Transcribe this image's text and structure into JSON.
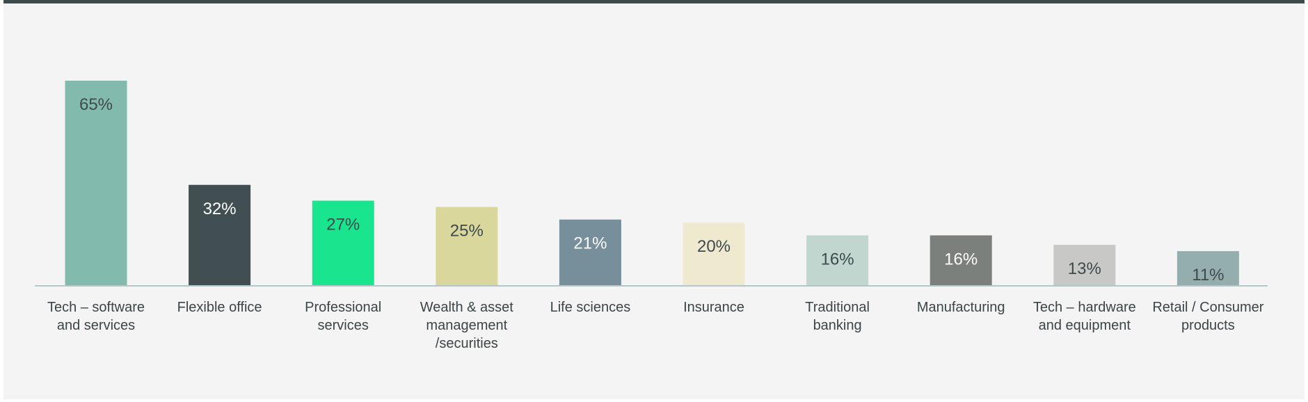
{
  "chart_data": {
    "type": "bar",
    "categories": [
      [
        "Tech – software",
        "and services"
      ],
      [
        "Flexible office"
      ],
      [
        "Professional",
        "services"
      ],
      [
        "Wealth & asset",
        "management",
        "/securities"
      ],
      [
        "Life sciences"
      ],
      [
        "Insurance"
      ],
      [
        "Traditional",
        "banking"
      ],
      [
        "Manufacturing"
      ],
      [
        "Tech – hardware",
        "and equipment"
      ],
      [
        "Retail / Consumer",
        "products"
      ]
    ],
    "values": [
      65,
      32,
      27,
      25,
      21,
      20,
      16,
      16,
      13,
      11
    ],
    "value_labels": [
      "65%",
      "32%",
      "27%",
      "25%",
      "21%",
      "20%",
      "16%",
      "16%",
      "13%",
      "11%"
    ],
    "colors": [
      "#82bbad",
      "#414f52",
      "#19e58f",
      "#dad79c",
      "#778e9b",
      "#efe9d0",
      "#c0d6cf",
      "#7b807c",
      "#c8c9c6",
      "#94adad"
    ],
    "label_colors": [
      "#3e4a4c",
      "#ffffff",
      "#3e4a4c",
      "#3e4a4c",
      "#ffffff",
      "#3e4a4c",
      "#3e4a4c",
      "#ffffff",
      "#3e4a4c",
      "#3e4a4c"
    ],
    "ylim": [
      0,
      70
    ],
    "grid": false,
    "title": "",
    "xlabel": "",
    "ylabel": ""
  }
}
